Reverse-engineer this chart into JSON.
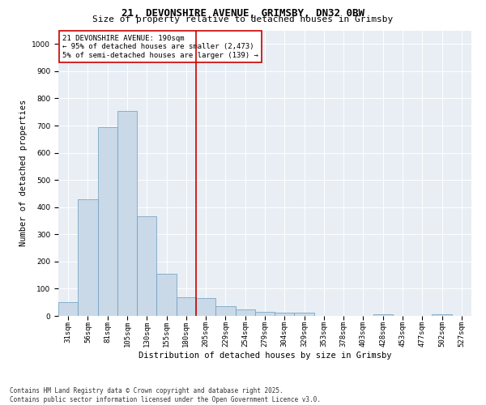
{
  "title": "21, DEVONSHIRE AVENUE, GRIMSBY, DN32 0BW",
  "subtitle": "Size of property relative to detached houses in Grimsby",
  "xlabel": "Distribution of detached houses by size in Grimsby",
  "ylabel": "Number of detached properties",
  "categories": [
    "31sqm",
    "56sqm",
    "81sqm",
    "105sqm",
    "130sqm",
    "155sqm",
    "180sqm",
    "205sqm",
    "229sqm",
    "254sqm",
    "279sqm",
    "304sqm",
    "329sqm",
    "353sqm",
    "378sqm",
    "403sqm",
    "428sqm",
    "453sqm",
    "477sqm",
    "502sqm",
    "527sqm"
  ],
  "values": [
    50,
    430,
    695,
    755,
    365,
    155,
    70,
    65,
    35,
    25,
    15,
    12,
    12,
    0,
    0,
    0,
    5,
    0,
    0,
    5,
    0
  ],
  "bar_color": "#c9d9e8",
  "bar_edge_color": "#6a9abf",
  "vline_x": 6.5,
  "vline_color": "#cc0000",
  "annotation_text": "21 DEVONSHIRE AVENUE: 190sqm\n← 95% of detached houses are smaller (2,473)\n5% of semi-detached houses are larger (139) →",
  "annotation_box_color": "#ffffff",
  "annotation_box_edge": "#cc0000",
  "ylim": [
    0,
    1050
  ],
  "yticks": [
    0,
    100,
    200,
    300,
    400,
    500,
    600,
    700,
    800,
    900,
    1000
  ],
  "background_color": "#e8eef4",
  "footer": "Contains HM Land Registry data © Crown copyright and database right 2025.\nContains public sector information licensed under the Open Government Licence v3.0.",
  "title_fontsize": 9,
  "subtitle_fontsize": 8,
  "axis_label_fontsize": 7.5,
  "tick_fontsize": 6.5,
  "annotation_fontsize": 6.5,
  "footer_fontsize": 5.5
}
